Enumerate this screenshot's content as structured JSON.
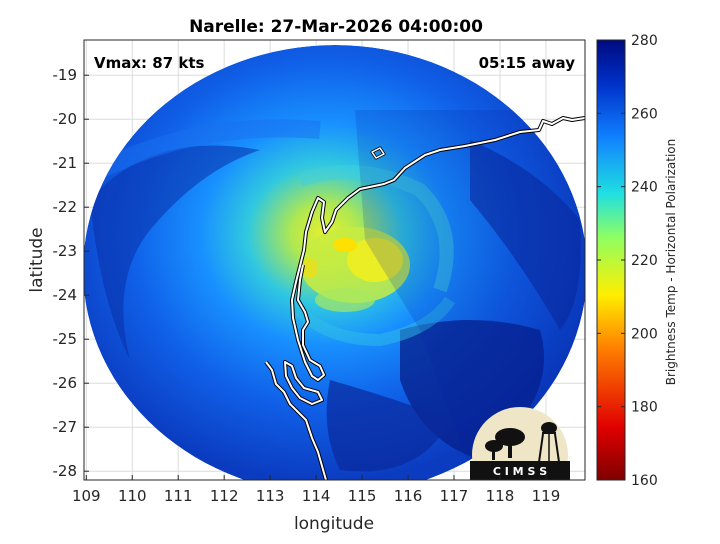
{
  "title": "Narelle: 27-Mar-2026 04:00:00",
  "vmax_label": "Vmax: 87 kts",
  "away_label": "05:15 away",
  "x_axis": {
    "label": "longitude",
    "range": [
      108.95,
      119.85
    ],
    "ticks": [
      109,
      110,
      111,
      112,
      113,
      114,
      115,
      116,
      117,
      118,
      119
    ]
  },
  "y_axis": {
    "label": "latitude",
    "range": [
      -28.2,
      -18.2
    ],
    "ticks": [
      -19,
      -20,
      -21,
      -22,
      -23,
      -24,
      -25,
      -26,
      -27,
      -28
    ]
  },
  "colorbar": {
    "label": "Brightness Temp - Horizontal Polarization",
    "range": [
      160,
      280
    ],
    "ticks": [
      280,
      260,
      240,
      220,
      200,
      180,
      160
    ]
  },
  "logo_text": "C I M S S",
  "colors": {
    "cold_core": "#ffe000",
    "warm_background": "#0a2a9c",
    "coastline": "#ffffff",
    "grid": "#dcdcdc"
  }
}
